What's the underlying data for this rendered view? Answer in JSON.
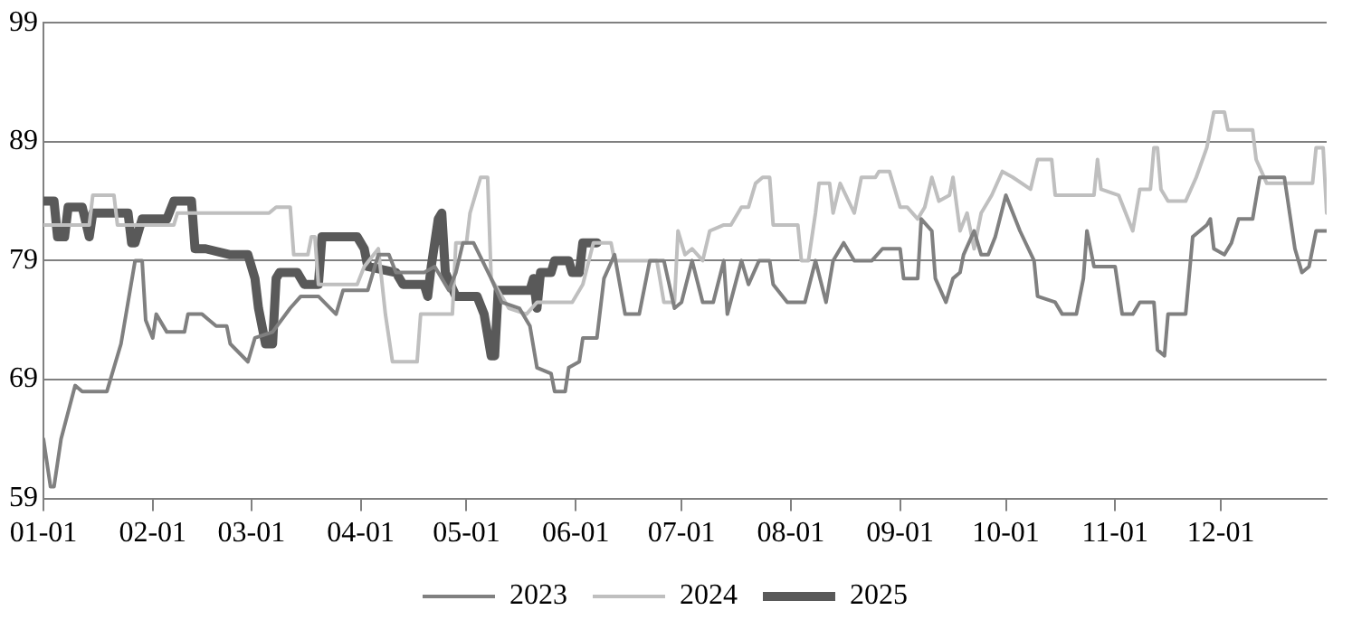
{
  "chart_data": {
    "type": "line",
    "xlim": [
      "--01-01",
      "--12-31"
    ],
    "xticks": [
      {
        "value": "--01-01",
        "label": "01-01"
      },
      {
        "value": "--02-01",
        "label": "02-01"
      },
      {
        "value": "--03-01",
        "label": "03-01"
      },
      {
        "value": "--04-01",
        "label": "04-01"
      },
      {
        "value": "--05-01",
        "label": "05-01"
      },
      {
        "value": "--06-01",
        "label": "06-01"
      },
      {
        "value": "--07-01",
        "label": "07-01"
      },
      {
        "value": "--08-01",
        "label": "08-01"
      },
      {
        "value": "--09-01",
        "label": "09-01"
      },
      {
        "value": "--10-01",
        "label": "10-01"
      },
      {
        "value": "--11-01",
        "label": "11-01"
      },
      {
        "value": "--12-01",
        "label": "12-01"
      }
    ],
    "ylim": [
      59,
      99
    ],
    "yticks": [
      59,
      69,
      79,
      89,
      99
    ],
    "grid": "y",
    "legend": "bottom",
    "marker": "none",
    "line_style": "solid",
    "series": [
      {
        "name": "2023",
        "color": "#808080",
        "x": [
          "--01-01",
          "--01-03",
          "--01-04",
          "--01-06",
          "--01-10",
          "--01-12",
          "--01-15",
          "--01-19",
          "--01-23",
          "--01-27",
          "--01-29",
          "--01-30",
          "--02-01",
          "--02-02",
          "--02-05",
          "--02-10",
          "--02-11",
          "--02-15",
          "--02-17",
          "--02-19",
          "--02-22",
          "--02-23",
          "--02-28",
          "--03-02",
          "--03-07",
          "--03-12",
          "--03-15",
          "--03-20",
          "--03-25",
          "--03-27",
          "--04-03",
          "--04-06",
          "--04-09",
          "--04-11",
          "--04-19",
          "--04-22",
          "--04-26",
          "--04-28",
          "--04-30",
          "--05-03",
          "--05-08",
          "--05-11",
          "--05-16",
          "--05-19",
          "--05-21",
          "--05-25",
          "--05-26",
          "--05-29",
          "--05-30",
          "--06-02",
          "--06-03",
          "--06-07",
          "--06-09",
          "--06-12",
          "--06-15",
          "--06-19",
          "--06-22",
          "--06-26",
          "--06-29",
          "--07-01",
          "--07-04",
          "--07-07",
          "--07-10",
          "--07-13",
          "--07-14",
          "--07-18",
          "--07-20",
          "--07-23",
          "--07-26",
          "--07-27",
          "--07-31",
          "--08-05",
          "--08-08",
          "--08-11",
          "--08-13",
          "--08-16",
          "--08-19",
          "--08-24",
          "--08-27",
          "--09-01",
          "--09-02",
          "--09-06",
          "--09-07",
          "--09-10",
          "--09-11",
          "--09-14",
          "--09-16",
          "--09-18",
          "--09-19",
          "--09-22",
          "--09-24",
          "--09-26",
          "--09-28",
          "--10-01",
          "--10-05",
          "--10-09",
          "--10-10",
          "--10-15",
          "--10-17",
          "--10-21",
          "--10-23",
          "--10-24",
          "--10-26",
          "--11-01",
          "--11-03",
          "--11-06",
          "--11-08",
          "--11-12",
          "--11-13",
          "--11-15",
          "--11-16",
          "--11-21",
          "--11-23",
          "--11-27",
          "--11-28",
          "--11-29",
          "--12-02",
          "--12-04",
          "--12-06",
          "--12-10",
          "--12-12",
          "--12-19",
          "--12-22",
          "--12-24",
          "--12-26",
          "--12-28",
          "--12-31"
        ],
        "values": [
          64,
          60,
          60,
          64,
          68.5,
          68,
          68,
          68,
          72,
          79,
          79,
          74,
          72.5,
          74.5,
          73,
          73,
          74.5,
          74.5,
          74,
          73.5,
          73.5,
          72,
          70.5,
          72.5,
          73,
          75,
          76,
          76,
          74.5,
          76.5,
          76.5,
          79.5,
          79.5,
          78,
          78,
          78.5,
          76.5,
          78,
          80.5,
          80.5,
          77.5,
          75.5,
          75,
          73.5,
          70,
          69.5,
          68,
          68,
          70,
          70.5,
          72.5,
          72.5,
          77.5,
          79.5,
          74.5,
          74.5,
          79,
          79,
          75,
          75.5,
          79,
          75.5,
          75.5,
          79,
          74.5,
          79,
          77,
          79,
          79,
          77,
          75.5,
          75.5,
          79,
          75.5,
          79,
          80.5,
          79,
          79,
          80,
          80,
          77.5,
          77.5,
          82.5,
          81.5,
          77.5,
          75.5,
          77.5,
          78,
          79.5,
          81.5,
          79.5,
          79.5,
          81,
          84.5,
          81.5,
          79,
          76,
          75.5,
          74.5,
          74.5,
          77.5,
          81.5,
          78.5,
          78.5,
          74.5,
          74.5,
          75.5,
          75.5,
          71.5,
          71,
          74.5,
          74.5,
          81,
          82,
          82.5,
          80,
          79.5,
          80.5,
          82.5,
          82.5,
          86,
          86,
          80,
          78,
          78.5,
          81.5,
          81.5
        ]
      },
      {
        "name": "2024",
        "color": "#bfbfbf",
        "x": [
          "--01-01",
          "--01-14",
          "--01-15",
          "--01-21",
          "--01-22",
          "--02-07",
          "--02-08",
          "--03-06",
          "--03-08",
          "--03-12",
          "--03-13",
          "--03-17",
          "--03-18",
          "--03-19",
          "--03-20",
          "--03-31",
          "--04-02",
          "--04-06",
          "--04-08",
          "--04-10",
          "--04-17",
          "--04-18",
          "--04-27",
          "--04-28",
          "--05-01",
          "--05-02",
          "--05-05",
          "--05-07",
          "--05-08",
          "--05-13",
          "--05-18",
          "--05-21",
          "--05-31",
          "--06-03",
          "--06-06",
          "--06-11",
          "--06-12",
          "--06-24",
          "--06-26",
          "--06-29",
          "--06-30",
          "--07-02",
          "--07-04",
          "--07-07",
          "--07-09",
          "--07-13",
          "--07-15",
          "--07-18",
          "--07-20",
          "--07-22",
          "--07-24",
          "--07-26",
          "--07-27",
          "--08-03",
          "--08-04",
          "--08-06",
          "--08-08",
          "--08-09",
          "--08-12",
          "--08-13",
          "--08-15",
          "--08-19",
          "--08-21",
          "--08-25",
          "--08-26",
          "--08-29",
          "--09-01",
          "--09-03",
          "--09-06",
          "--09-08",
          "--09-10",
          "--09-12",
          "--09-15",
          "--09-16",
          "--09-18",
          "--09-20",
          "--09-22",
          "--09-24",
          "--09-27",
          "--09-30",
          "--10-03",
          "--10-08",
          "--10-10",
          "--10-14",
          "--10-15",
          "--10-26",
          "--10-27",
          "--10-28",
          "--11-02",
          "--11-06",
          "--11-08",
          "--11-11",
          "--11-12",
          "--11-13",
          "--11-14",
          "--11-16",
          "--11-21",
          "--11-24",
          "--11-27",
          "--11-29",
          "--12-02",
          "--12-03",
          "--12-10",
          "--12-11",
          "--12-14",
          "--12-27",
          "--12-28",
          "--12-30",
          "--12-31"
        ],
        "values": [
          82,
          82,
          84.5,
          84.5,
          82,
          82,
          83,
          83,
          83.5,
          83.5,
          79.5,
          79.5,
          81,
          81,
          77,
          77,
          78.5,
          80,
          74.5,
          70.5,
          70.5,
          74.5,
          74.5,
          80.5,
          80.5,
          83,
          86,
          86,
          77.5,
          75,
          74.5,
          75.5,
          75.5,
          77,
          80.5,
          80.5,
          79,
          79,
          75.5,
          75.5,
          81.5,
          79.5,
          80,
          79,
          81.5,
          82,
          82,
          83.5,
          83.5,
          85.5,
          86,
          86,
          82,
          82,
          79,
          79,
          83,
          85.5,
          85.5,
          83,
          85.5,
          83,
          86,
          86,
          86.5,
          86.5,
          83.5,
          83.5,
          82.5,
          83.5,
          86,
          84,
          84.5,
          86,
          81.5,
          83,
          80,
          83,
          84.5,
          86.5,
          86,
          85,
          87.5,
          87.5,
          84.5,
          84.5,
          87.5,
          85,
          84.5,
          81.5,
          85,
          85,
          88.5,
          88.5,
          85,
          84,
          84,
          86,
          88.5,
          91.5,
          91.5,
          90,
          90,
          87.5,
          85.5,
          85.5,
          88.5,
          88.5,
          83
        ]
      },
      {
        "name": "2025",
        "color": "#595959",
        "x": [
          "--01-01",
          "--01-04",
          "--01-05",
          "--01-07",
          "--01-08",
          "--01-12",
          "--01-14",
          "--01-15",
          "--01-25",
          "--01-26",
          "--01-27",
          "--01-29",
          "--02-05",
          "--02-07",
          "--02-12",
          "--02-13",
          "--02-16",
          "--02-23",
          "--02-28",
          "--03-02",
          "--03-03",
          "--03-05",
          "--03-07",
          "--03-08",
          "--03-09",
          "--03-14",
          "--03-16",
          "--03-20",
          "--03-21",
          "--03-31",
          "--04-02",
          "--04-03",
          "--04-11",
          "--04-13",
          "--04-19",
          "--04-20",
          "--04-21",
          "--04-23",
          "--04-24",
          "--04-25",
          "--04-28",
          "--05-04",
          "--05-06",
          "--05-08",
          "--05-09",
          "--05-10",
          "--05-19",
          "--05-20",
          "--05-21",
          "--05-22",
          "--05-25",
          "--05-26",
          "--05-30",
          "--05-31",
          "--06-02",
          "--06-03",
          "--06-07"
        ],
        "values": [
          84,
          84,
          81,
          81,
          83.5,
          83.5,
          81,
          83,
          83,
          80.5,
          80.5,
          82.5,
          82.5,
          84,
          84,
          80,
          80,
          79.5,
          79.5,
          77.5,
          75,
          72,
          72,
          77.5,
          78,
          78,
          77,
          77,
          81,
          81,
          80,
          78.5,
          78,
          77,
          77,
          76,
          78.5,
          82.5,
          83,
          78,
          76,
          76,
          74.5,
          71,
          71,
          76.5,
          76.5,
          77.5,
          75,
          78,
          78,
          79,
          79,
          78,
          78,
          80.5,
          80.5
        ]
      }
    ]
  }
}
